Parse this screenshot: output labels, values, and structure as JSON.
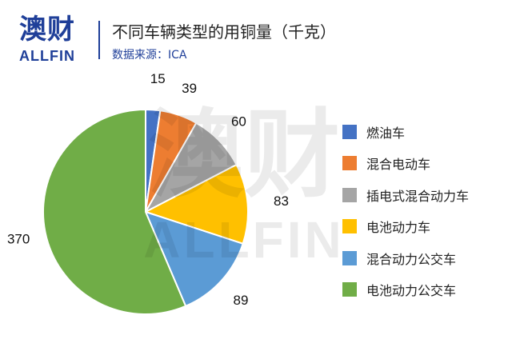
{
  "logo": {
    "mark": "澳财",
    "text": "ALLFIN"
  },
  "header": {
    "title": "不同车辆类型的用铜量（千克）",
    "source": "数据来源：ICA"
  },
  "watermark": {
    "mark": "澳财",
    "text": "ALLFIN"
  },
  "chart_data": {
    "type": "pie",
    "title": "不同车辆类型的用铜量（千克）",
    "categories": [
      "燃油车",
      "混合电动车",
      "插电式混合动力车",
      "电池动力车",
      "混合动力公交车",
      "电池动力公交车"
    ],
    "values": [
      15,
      39,
      60,
      83,
      89,
      370
    ],
    "value_labels": [
      "15",
      "39",
      "60",
      "83",
      "89",
      "370"
    ],
    "colors": [
      "#4472c4",
      "#ed7d31",
      "#a5a5a5",
      "#ffc000",
      "#5b9bd5",
      "#70ad47"
    ],
    "start_angle": "12 o'clock",
    "direction": "clockwise",
    "legend_position": "right"
  }
}
